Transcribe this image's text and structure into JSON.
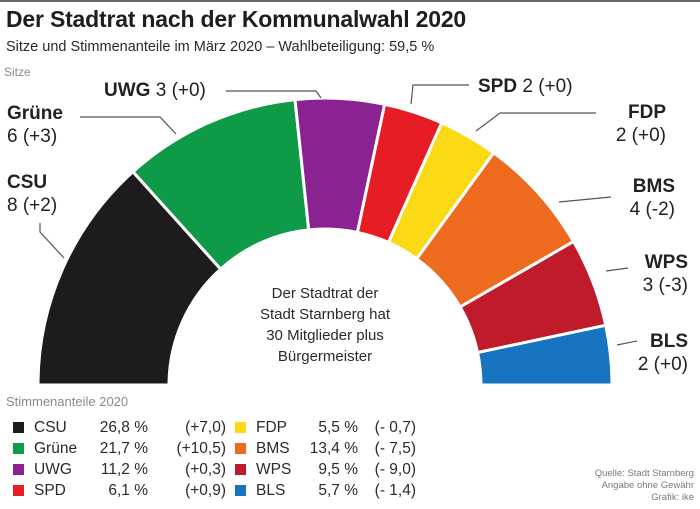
{
  "header": {
    "title": "Der Stadtrat nach der Kommunalwahl 2020",
    "subtitle": "Sitze und Stimmenanteile im März 2020 – Wahlbeteiligung: 59,5 %",
    "seats_label": "Sitze"
  },
  "center_text": [
    "Der Stadtrat der",
    "Stadt Starnberg hat",
    "30 Mitglieder plus",
    "Bürgermeister"
  ],
  "legend_title": "Stimmenanteile 2020",
  "source": [
    "Quelle: Stadt Starnberg",
    "Angabe ohne Gewähr",
    "Grafik: ike"
  ],
  "chart_data": {
    "type": "pie",
    "subtype": "semicircle-parliament",
    "title": "Der Stadtrat nach der Kommunalwahl 2020",
    "total_seats": 30,
    "parties": [
      {
        "name": "CSU",
        "seats": 8,
        "seat_change": "+2",
        "seat_label": "8 (+2)",
        "vote_pct": "26,8 %",
        "vote_change": "(+7,0)",
        "color": "#1d1b1b"
      },
      {
        "name": "Grüne",
        "seats": 6,
        "seat_change": "+3",
        "seat_label": "6 (+3)",
        "vote_pct": "21,7 %",
        "vote_change": "(+10,5)",
        "color": "#0f9a48"
      },
      {
        "name": "UWG",
        "seats": 3,
        "seat_change": "+0",
        "seat_label": "3 (+0)",
        "vote_pct": "11,2 %",
        "vote_change": "(+0,3)",
        "color": "#8a2391"
      },
      {
        "name": "SPD",
        "seats": 2,
        "seat_change": "+0",
        "seat_label": "2 (+0)",
        "vote_pct": "6,1 %",
        "vote_change": "(+0,9)",
        "color": "#e61d25"
      },
      {
        "name": "FDP",
        "seats": 2,
        "seat_change": "+0",
        "seat_label": "2 (+0)",
        "vote_pct": "5,5 %",
        "vote_change": "(- 0,7)",
        "color": "#fbd915"
      },
      {
        "name": "BMS",
        "seats": 4,
        "seat_change": "-2",
        "seat_label": "4 (-2)",
        "vote_pct": "13,4 %",
        "vote_change": "(- 7,5)",
        "color": "#ee6a1f"
      },
      {
        "name": "WPS",
        "seats": 3,
        "seat_change": "-3",
        "seat_label": "3 (-3)",
        "vote_pct": "9,5 %",
        "vote_change": "(- 9,0)",
        "color": "#c01b2b"
      },
      {
        "name": "BLS",
        "seats": 2,
        "seat_change": "+0",
        "seat_label": "2 (+0)",
        "vote_pct": "5,7 %",
        "vote_change": "(- 1,4)",
        "color": "#1873c0"
      }
    ]
  }
}
